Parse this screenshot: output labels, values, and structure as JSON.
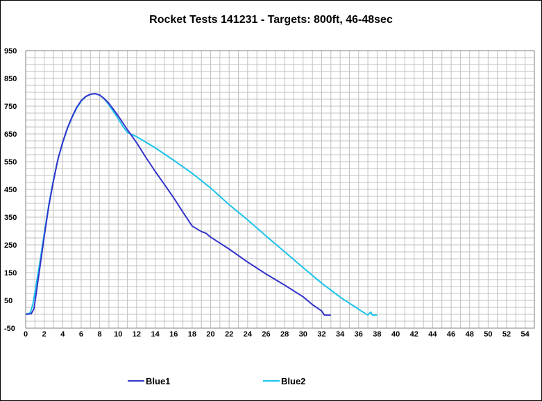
{
  "chart_data": {
    "type": "line",
    "title": "Rocket Tests 141231 - Targets: 800ft, 46-48sec",
    "xlabel": "",
    "ylabel": "",
    "xlim": [
      0,
      55
    ],
    "ylim": [
      -50,
      950
    ],
    "x_ticks": [
      0,
      2,
      4,
      6,
      8,
      10,
      12,
      14,
      16,
      18,
      20,
      22,
      24,
      26,
      28,
      30,
      32,
      34,
      36,
      38,
      40,
      42,
      44,
      46,
      48,
      50,
      52,
      54
    ],
    "y_ticks": [
      -50,
      50,
      150,
      250,
      350,
      450,
      550,
      650,
      750,
      850,
      950
    ],
    "grid": true,
    "legend_position": "bottom",
    "series": [
      {
        "name": "Blue1",
        "color": "#3333cc",
        "x": [
          0,
          0.6,
          0.9,
          1.2,
          1.5,
          2,
          2.5,
          3,
          3.5,
          4,
          4.5,
          5,
          5.5,
          6,
          6.5,
          7,
          7.5,
          8,
          8.5,
          9,
          9.5,
          10,
          11,
          12,
          13,
          14,
          15,
          16,
          17,
          18,
          19,
          19.5,
          20,
          22,
          24,
          26,
          28,
          30,
          31,
          32,
          32.3,
          33
        ],
        "y": [
          0,
          2,
          20,
          90,
          160,
          280,
          390,
          480,
          560,
          620,
          670,
          710,
          745,
          770,
          785,
          793,
          795,
          790,
          777,
          760,
          738,
          715,
          665,
          618,
          565,
          515,
          468,
          420,
          368,
          318,
          298,
          292,
          278,
          235,
          188,
          145,
          105,
          63,
          35,
          12,
          -3,
          -3
        ]
      },
      {
        "name": "Blue2",
        "color": "#19c3ec",
        "x": [
          0,
          0.5,
          0.8,
          1.2,
          1.5,
          2,
          2.5,
          3,
          3.5,
          4,
          4.5,
          5,
          5.5,
          6,
          6.5,
          7,
          7.5,
          8,
          8.5,
          9,
          9.5,
          10,
          10.5,
          11,
          12,
          14,
          16,
          18,
          20,
          22,
          24,
          26,
          28,
          30,
          32,
          34,
          36,
          37,
          37.3,
          37.5,
          38
        ],
        "y": [
          0,
          5,
          40,
          120,
          180,
          290,
          395,
          485,
          560,
          618,
          668,
          708,
          742,
          768,
          784,
          792,
          795,
          790,
          776,
          755,
          730,
          705,
          678,
          655,
          640,
          600,
          555,
          508,
          455,
          395,
          340,
          282,
          225,
          168,
          112,
          62,
          18,
          -3,
          8,
          -3,
          -3
        ]
      }
    ]
  }
}
